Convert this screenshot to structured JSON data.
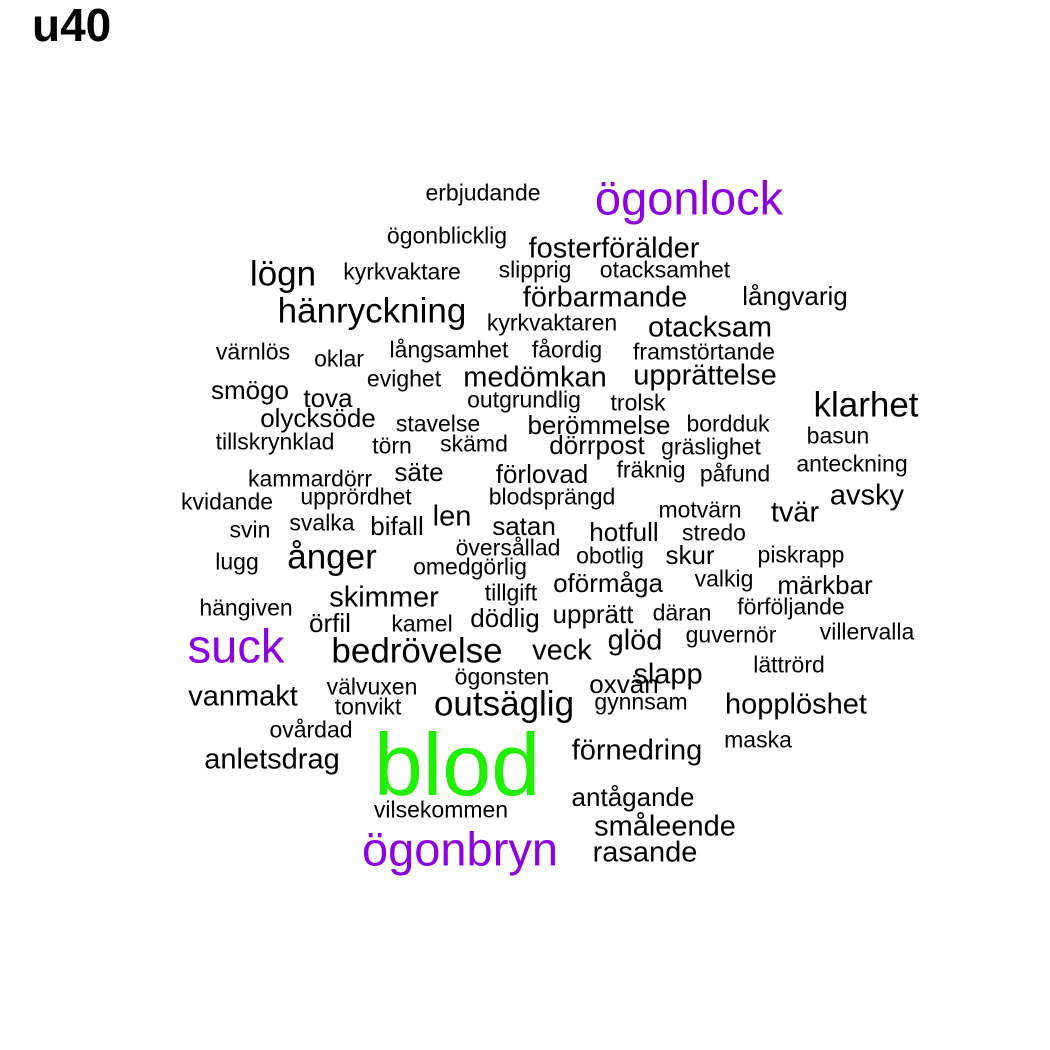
{
  "title": "u40",
  "colors": {
    "default": "#000000",
    "purple": "#8a00e0",
    "green": "#22ee00"
  },
  "words": [
    {
      "text": "erbjudande",
      "size": "small",
      "color": "default"
    },
    {
      "text": "ögonlock",
      "size": "large",
      "color": "purple"
    },
    {
      "text": "ögonblicklig",
      "size": "small",
      "color": "default"
    },
    {
      "text": "fosterförälder",
      "size": "medium",
      "color": "default"
    },
    {
      "text": "lögn",
      "size": "large-medium",
      "color": "default"
    },
    {
      "text": "kyrkvaktare",
      "size": "small",
      "color": "default"
    },
    {
      "text": "slipprig",
      "size": "small",
      "color": "default"
    },
    {
      "text": "otacksamhet",
      "size": "small",
      "color": "default"
    },
    {
      "text": "förbarmande",
      "size": "medium",
      "color": "default"
    },
    {
      "text": "långvarig",
      "size": "medium-small",
      "color": "default"
    },
    {
      "text": "hänryckning",
      "size": "large-medium",
      "color": "default"
    },
    {
      "text": "kyrkvaktaren",
      "size": "small",
      "color": "default"
    },
    {
      "text": "otacksam",
      "size": "medium",
      "color": "default"
    },
    {
      "text": "värnlös",
      "size": "small",
      "color": "default"
    },
    {
      "text": "oklar",
      "size": "small",
      "color": "default"
    },
    {
      "text": "långsamhet",
      "size": "small",
      "color": "default"
    },
    {
      "text": "fåordig",
      "size": "small",
      "color": "default"
    },
    {
      "text": "framstörtande",
      "size": "small",
      "color": "default"
    },
    {
      "text": "smögo",
      "size": "medium-small",
      "color": "default"
    },
    {
      "text": "tova",
      "size": "medium-small",
      "color": "default"
    },
    {
      "text": "evighet",
      "size": "small",
      "color": "default"
    },
    {
      "text": "medömkan",
      "size": "medium",
      "color": "default"
    },
    {
      "text": "upprättelse",
      "size": "medium",
      "color": "default"
    },
    {
      "text": "klarhet",
      "size": "large-medium",
      "color": "default"
    },
    {
      "text": "olycksöde",
      "size": "medium-small",
      "color": "default"
    },
    {
      "text": "outgrundlig",
      "size": "small",
      "color": "default"
    },
    {
      "text": "trolsk",
      "size": "small",
      "color": "default"
    },
    {
      "text": "stavelse",
      "size": "small",
      "color": "default"
    },
    {
      "text": "berömmelse",
      "size": "medium-small",
      "color": "default"
    },
    {
      "text": "bordduk",
      "size": "small",
      "color": "default"
    },
    {
      "text": "tillskrynklad",
      "size": "small",
      "color": "default"
    },
    {
      "text": "törn",
      "size": "small",
      "color": "default"
    },
    {
      "text": "skämd",
      "size": "small",
      "color": "default"
    },
    {
      "text": "dörrpost",
      "size": "medium-small",
      "color": "default"
    },
    {
      "text": "gräslighet",
      "size": "small",
      "color": "default"
    },
    {
      "text": "basun",
      "size": "small",
      "color": "default"
    },
    {
      "text": "kammardörr",
      "size": "small",
      "color": "default"
    },
    {
      "text": "säte",
      "size": "medium-small",
      "color": "default"
    },
    {
      "text": "förlovad",
      "size": "medium-small",
      "color": "default"
    },
    {
      "text": "fräknig",
      "size": "small",
      "color": "default"
    },
    {
      "text": "påfund",
      "size": "small",
      "color": "default"
    },
    {
      "text": "anteckning",
      "size": "small",
      "color": "default"
    },
    {
      "text": "kvidande",
      "size": "small",
      "color": "default"
    },
    {
      "text": "upprördhet",
      "size": "small",
      "color": "default"
    },
    {
      "text": "blodsprängd",
      "size": "small",
      "color": "default"
    },
    {
      "text": "avsky",
      "size": "medium",
      "color": "default"
    },
    {
      "text": "svin",
      "size": "small",
      "color": "default"
    },
    {
      "text": "svalka",
      "size": "small",
      "color": "default"
    },
    {
      "text": "bifall",
      "size": "medium-small",
      "color": "default"
    },
    {
      "text": "len",
      "size": "medium",
      "color": "default"
    },
    {
      "text": "satan",
      "size": "medium-small",
      "color": "default"
    },
    {
      "text": "motvärn",
      "size": "small",
      "color": "default"
    },
    {
      "text": "tvär",
      "size": "medium",
      "color": "default"
    },
    {
      "text": "hotfull",
      "size": "medium-small",
      "color": "default"
    },
    {
      "text": "stredo",
      "size": "small",
      "color": "default"
    },
    {
      "text": "lugg",
      "size": "small",
      "color": "default"
    },
    {
      "text": "ånger",
      "size": "large-medium",
      "color": "default"
    },
    {
      "text": "översållad",
      "size": "small",
      "color": "default"
    },
    {
      "text": "obotlig",
      "size": "small",
      "color": "default"
    },
    {
      "text": "skur",
      "size": "medium-small",
      "color": "default"
    },
    {
      "text": "piskrapp",
      "size": "small",
      "color": "default"
    },
    {
      "text": "omedgörlig",
      "size": "small",
      "color": "default"
    },
    {
      "text": "oförmåga",
      "size": "medium-small",
      "color": "default"
    },
    {
      "text": "valkig",
      "size": "small",
      "color": "default"
    },
    {
      "text": "märkbar",
      "size": "medium-small",
      "color": "default"
    },
    {
      "text": "hängiven",
      "size": "small",
      "color": "default"
    },
    {
      "text": "skimmer",
      "size": "medium",
      "color": "default"
    },
    {
      "text": "tillgift",
      "size": "small",
      "color": "default"
    },
    {
      "text": "förföljande",
      "size": "small",
      "color": "default"
    },
    {
      "text": "örfil",
      "size": "medium-small",
      "color": "default"
    },
    {
      "text": "kamel",
      "size": "small",
      "color": "default"
    },
    {
      "text": "dödlig",
      "size": "medium-small",
      "color": "default"
    },
    {
      "text": "upprätt",
      "size": "medium-small",
      "color": "default"
    },
    {
      "text": "däran",
      "size": "small",
      "color": "default"
    },
    {
      "text": "villervalla",
      "size": "small",
      "color": "default"
    },
    {
      "text": "suck",
      "size": "large",
      "color": "purple"
    },
    {
      "text": "bedrövelse",
      "size": "large-medium",
      "color": "default"
    },
    {
      "text": "veck",
      "size": "medium",
      "color": "default"
    },
    {
      "text": "glöd",
      "size": "medium",
      "color": "default"
    },
    {
      "text": "guvernör",
      "size": "small",
      "color": "default"
    },
    {
      "text": "lättrörd",
      "size": "small",
      "color": "default"
    },
    {
      "text": "ögonsten",
      "size": "small",
      "color": "default"
    },
    {
      "text": "slapp",
      "size": "medium",
      "color": "default"
    },
    {
      "text": "vanmakt",
      "size": "medium",
      "color": "default"
    },
    {
      "text": "välvuxen",
      "size": "small",
      "color": "default"
    },
    {
      "text": "oxvän",
      "size": "medium-small",
      "color": "default"
    },
    {
      "text": "tonvikt",
      "size": "small",
      "color": "default"
    },
    {
      "text": "outsäglig",
      "size": "large-medium",
      "color": "default"
    },
    {
      "text": "gynnsam",
      "size": "small",
      "color": "default"
    },
    {
      "text": "hopplöshet",
      "size": "medium",
      "color": "default"
    },
    {
      "text": "ovårdad",
      "size": "small",
      "color": "default"
    },
    {
      "text": "blod",
      "size": "huge",
      "color": "green"
    },
    {
      "text": "maska",
      "size": "small",
      "color": "default"
    },
    {
      "text": "förnedring",
      "size": "medium",
      "color": "default"
    },
    {
      "text": "anletsdrag",
      "size": "medium",
      "color": "default"
    },
    {
      "text": "antågande",
      "size": "medium-small",
      "color": "default"
    },
    {
      "text": "vilsekommen",
      "size": "small",
      "color": "default"
    },
    {
      "text": "småleende",
      "size": "medium",
      "color": "default"
    },
    {
      "text": "ögonbryn",
      "size": "large",
      "color": "purple"
    },
    {
      "text": "rasande",
      "size": "medium",
      "color": "default"
    }
  ]
}
